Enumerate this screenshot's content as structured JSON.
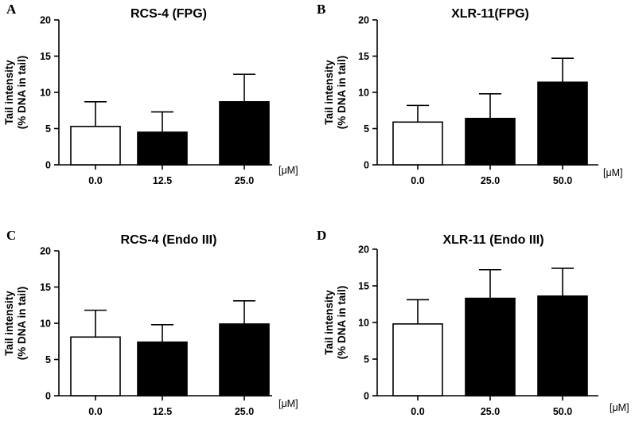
{
  "chart_data": [
    {
      "type": "bar",
      "panel": "A",
      "title": "RCS-4 (FPG)",
      "ylabel": "Tail intensity",
      "ylabel2": "(% DNA in tail)",
      "unit": "[μM]",
      "ylim": [
        0,
        20
      ],
      "yticks": [
        0,
        5,
        10,
        15,
        20
      ],
      "categories": [
        "0.0",
        "12.5",
        "25.0"
      ],
      "values": [
        5.3,
        4.5,
        8.7
      ],
      "errors": [
        3.4,
        2.8,
        3.8
      ],
      "colors": [
        "#ffffff",
        "#000000",
        "#000000"
      ]
    },
    {
      "type": "bar",
      "panel": "B",
      "title": "XLR-11(FPG)",
      "ylabel": "Tail intensity",
      "ylabel2": "(% DNA in tail)",
      "unit": "[μM]",
      "ylim": [
        0,
        20
      ],
      "yticks": [
        0,
        5,
        10,
        15,
        20
      ],
      "categories": [
        "0.0",
        "25.0",
        "50.0"
      ],
      "values": [
        5.9,
        6.4,
        11.4
      ],
      "errors": [
        2.3,
        3.4,
        3.3
      ],
      "colors": [
        "#ffffff",
        "#000000",
        "#000000"
      ]
    },
    {
      "type": "bar",
      "panel": "C",
      "title": "RCS-4 (Endo III)",
      "ylabel": "Tail intensity",
      "ylabel2": "(% DNA in tail)",
      "unit": "[μM]",
      "ylim": [
        0,
        20
      ],
      "yticks": [
        0,
        5,
        10,
        15,
        20
      ],
      "categories": [
        "0.0",
        "12.5",
        "25.0"
      ],
      "values": [
        8.1,
        7.4,
        9.9
      ],
      "errors": [
        3.7,
        2.4,
        3.2
      ],
      "colors": [
        "#ffffff",
        "#000000",
        "#000000"
      ]
    },
    {
      "type": "bar",
      "panel": "D",
      "title": "XLR-11 (Endo III)",
      "ylabel": "Tail intensity",
      "ylabel2": "(% DNA in tail)",
      "unit": "[μM]",
      "ylim": [
        0,
        20
      ],
      "yticks": [
        0,
        5,
        10,
        15,
        20
      ],
      "categories": [
        "0.0",
        "25.0",
        "50.0"
      ],
      "values": [
        9.8,
        13.3,
        13.6
      ],
      "errors": [
        3.3,
        3.9,
        3.8
      ],
      "colors": [
        "#ffffff",
        "#000000",
        "#000000"
      ]
    }
  ]
}
